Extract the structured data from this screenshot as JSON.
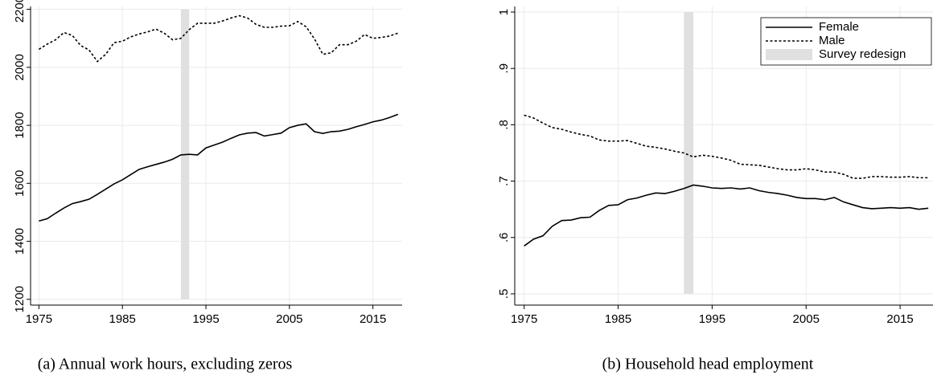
{
  "chart_data": [
    {
      "type": "line",
      "caption": "(a) Annual work hours, excluding zeros",
      "x": [
        1975,
        1976,
        1977,
        1978,
        1979,
        1980,
        1981,
        1982,
        1983,
        1984,
        1985,
        1986,
        1987,
        1988,
        1989,
        1990,
        1991,
        1992,
        1993,
        1994,
        1995,
        1996,
        1997,
        1998,
        1999,
        2000,
        2001,
        2002,
        2003,
        2004,
        2005,
        2006,
        2007,
        2008,
        2009,
        2010,
        2011,
        2012,
        2013,
        2014,
        2015,
        2016,
        2017,
        2018
      ],
      "series": [
        {
          "color": "#000000",
          "style": "solid",
          "values": [
            1470,
            1478,
            1497,
            1515,
            1530,
            1537,
            1545,
            1562,
            1580,
            1598,
            1612,
            1630,
            1648,
            1657,
            1665,
            1673,
            1683,
            1698,
            1700,
            1698,
            1722,
            1732,
            1742,
            1755,
            1767,
            1773,
            1775,
            1763,
            1768,
            1773,
            1792,
            1800,
            1805,
            1778,
            1772,
            1778,
            1780,
            1786,
            1795,
            1803,
            1812,
            1818,
            1827,
            1838
          ]
        },
        {
          "color": "#000000",
          "style": "dashed",
          "values": [
            2062,
            2080,
            2095,
            2120,
            2110,
            2075,
            2060,
            2020,
            2045,
            2085,
            2090,
            2105,
            2115,
            2122,
            2132,
            2118,
            2095,
            2100,
            2130,
            2152,
            2152,
            2152,
            2160,
            2170,
            2178,
            2170,
            2148,
            2138,
            2138,
            2142,
            2143,
            2158,
            2140,
            2098,
            2045,
            2050,
            2078,
            2078,
            2090,
            2113,
            2100,
            2103,
            2108,
            2118
          ]
        }
      ],
      "shade": {
        "x": [
          1992,
          1993
        ],
        "color": "#e0e0e0"
      },
      "xlim": [
        1974,
        2018.5
      ],
      "xticks": [
        1975,
        1985,
        1995,
        2005,
        2015
      ],
      "ylim": [
        1180,
        2210
      ],
      "yticks": [
        1200,
        1400,
        1600,
        1800,
        2000,
        2200
      ],
      "grid": true
    },
    {
      "type": "line",
      "caption": "(b) Household head employment",
      "x": [
        1975,
        1976,
        1977,
        1978,
        1979,
        1980,
        1981,
        1982,
        1983,
        1984,
        1985,
        1986,
        1987,
        1988,
        1989,
        1990,
        1991,
        1992,
        1993,
        1994,
        1995,
        1996,
        1997,
        1998,
        1999,
        2000,
        2001,
        2002,
        2003,
        2004,
        2005,
        2006,
        2007,
        2008,
        2009,
        2010,
        2011,
        2012,
        2013,
        2014,
        2015,
        2016,
        2017,
        2018
      ],
      "series": [
        {
          "name": "Female",
          "color": "#000000",
          "style": "solid",
          "values": [
            0.585,
            0.597,
            0.603,
            0.62,
            0.63,
            0.631,
            0.635,
            0.636,
            0.648,
            0.657,
            0.658,
            0.667,
            0.67,
            0.675,
            0.679,
            0.678,
            0.682,
            0.687,
            0.693,
            0.691,
            0.688,
            0.687,
            0.688,
            0.686,
            0.688,
            0.683,
            0.68,
            0.678,
            0.675,
            0.671,
            0.669,
            0.669,
            0.667,
            0.671,
            0.663,
            0.658,
            0.653,
            0.651,
            0.652,
            0.653,
            0.652,
            0.653,
            0.65,
            0.652
          ]
        },
        {
          "name": "Male",
          "color": "#000000",
          "style": "dashed",
          "values": [
            0.817,
            0.812,
            0.803,
            0.795,
            0.792,
            0.787,
            0.783,
            0.78,
            0.773,
            0.771,
            0.771,
            0.772,
            0.767,
            0.762,
            0.76,
            0.757,
            0.753,
            0.75,
            0.743,
            0.746,
            0.744,
            0.741,
            0.737,
            0.73,
            0.729,
            0.728,
            0.725,
            0.722,
            0.72,
            0.72,
            0.722,
            0.72,
            0.716,
            0.716,
            0.712,
            0.705,
            0.705,
            0.708,
            0.708,
            0.707,
            0.707,
            0.708,
            0.706,
            0.706
          ]
        }
      ],
      "shade": {
        "name": "Survey redesign",
        "x": [
          1992,
          1993
        ],
        "color": "#e0e0e0"
      },
      "xlim": [
        1974,
        2018.5
      ],
      "xticks": [
        1975,
        1985,
        1995,
        2005,
        2015
      ],
      "ylim": [
        0.48,
        1.01
      ],
      "yticks": [
        {
          "value": 0.5,
          "label": ".5"
        },
        {
          "value": 0.6,
          "label": ".6"
        },
        {
          "value": 0.7,
          "label": ".7"
        },
        {
          "value": 0.8,
          "label": ".8"
        },
        {
          "value": 0.9,
          "label": ".9"
        },
        {
          "value": 1,
          "label": "1"
        }
      ],
      "grid": true,
      "legend": "top-right"
    }
  ]
}
